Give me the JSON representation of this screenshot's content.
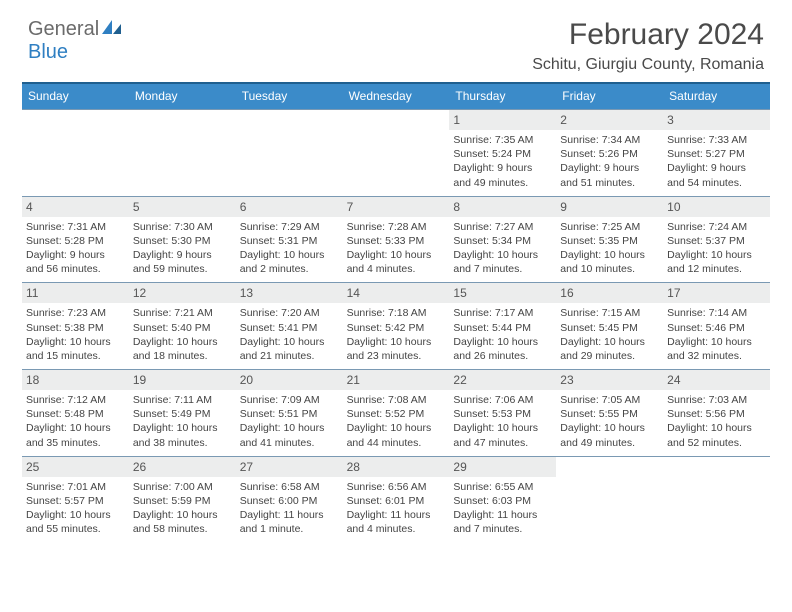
{
  "header": {
    "logo_part1": "General",
    "logo_part2": "Blue",
    "month_title": "February 2024",
    "location": "Schitu, Giurgiu County, Romania"
  },
  "colors": {
    "header_bar": "#3b8bc9",
    "header_bar_border": "#1f5f8f",
    "row_border": "#7a99b3",
    "daynum_bg": "#eceded",
    "logo_gray": "#6b6b6b",
    "logo_blue": "#2f7fc2",
    "text": "#444444",
    "background": "#ffffff"
  },
  "typography": {
    "month_title_size": 30,
    "location_size": 16,
    "dow_size": 12,
    "daynum_size": 12,
    "info_size": 10.5
  },
  "dow": [
    "Sunday",
    "Monday",
    "Tuesday",
    "Wednesday",
    "Thursday",
    "Friday",
    "Saturday"
  ],
  "weeks": [
    [
      {
        "blank": true
      },
      {
        "blank": true
      },
      {
        "blank": true
      },
      {
        "blank": true
      },
      {
        "num": "1",
        "sunrise": "Sunrise: 7:35 AM",
        "sunset": "Sunset: 5:24 PM",
        "day1": "Daylight: 9 hours",
        "day2": "and 49 minutes."
      },
      {
        "num": "2",
        "sunrise": "Sunrise: 7:34 AM",
        "sunset": "Sunset: 5:26 PM",
        "day1": "Daylight: 9 hours",
        "day2": "and 51 minutes."
      },
      {
        "num": "3",
        "sunrise": "Sunrise: 7:33 AM",
        "sunset": "Sunset: 5:27 PM",
        "day1": "Daylight: 9 hours",
        "day2": "and 54 minutes."
      }
    ],
    [
      {
        "num": "4",
        "sunrise": "Sunrise: 7:31 AM",
        "sunset": "Sunset: 5:28 PM",
        "day1": "Daylight: 9 hours",
        "day2": "and 56 minutes."
      },
      {
        "num": "5",
        "sunrise": "Sunrise: 7:30 AM",
        "sunset": "Sunset: 5:30 PM",
        "day1": "Daylight: 9 hours",
        "day2": "and 59 minutes."
      },
      {
        "num": "6",
        "sunrise": "Sunrise: 7:29 AM",
        "sunset": "Sunset: 5:31 PM",
        "day1": "Daylight: 10 hours",
        "day2": "and 2 minutes."
      },
      {
        "num": "7",
        "sunrise": "Sunrise: 7:28 AM",
        "sunset": "Sunset: 5:33 PM",
        "day1": "Daylight: 10 hours",
        "day2": "and 4 minutes."
      },
      {
        "num": "8",
        "sunrise": "Sunrise: 7:27 AM",
        "sunset": "Sunset: 5:34 PM",
        "day1": "Daylight: 10 hours",
        "day2": "and 7 minutes."
      },
      {
        "num": "9",
        "sunrise": "Sunrise: 7:25 AM",
        "sunset": "Sunset: 5:35 PM",
        "day1": "Daylight: 10 hours",
        "day2": "and 10 minutes."
      },
      {
        "num": "10",
        "sunrise": "Sunrise: 7:24 AM",
        "sunset": "Sunset: 5:37 PM",
        "day1": "Daylight: 10 hours",
        "day2": "and 12 minutes."
      }
    ],
    [
      {
        "num": "11",
        "sunrise": "Sunrise: 7:23 AM",
        "sunset": "Sunset: 5:38 PM",
        "day1": "Daylight: 10 hours",
        "day2": "and 15 minutes."
      },
      {
        "num": "12",
        "sunrise": "Sunrise: 7:21 AM",
        "sunset": "Sunset: 5:40 PM",
        "day1": "Daylight: 10 hours",
        "day2": "and 18 minutes."
      },
      {
        "num": "13",
        "sunrise": "Sunrise: 7:20 AM",
        "sunset": "Sunset: 5:41 PM",
        "day1": "Daylight: 10 hours",
        "day2": "and 21 minutes."
      },
      {
        "num": "14",
        "sunrise": "Sunrise: 7:18 AM",
        "sunset": "Sunset: 5:42 PM",
        "day1": "Daylight: 10 hours",
        "day2": "and 23 minutes."
      },
      {
        "num": "15",
        "sunrise": "Sunrise: 7:17 AM",
        "sunset": "Sunset: 5:44 PM",
        "day1": "Daylight: 10 hours",
        "day2": "and 26 minutes."
      },
      {
        "num": "16",
        "sunrise": "Sunrise: 7:15 AM",
        "sunset": "Sunset: 5:45 PM",
        "day1": "Daylight: 10 hours",
        "day2": "and 29 minutes."
      },
      {
        "num": "17",
        "sunrise": "Sunrise: 7:14 AM",
        "sunset": "Sunset: 5:46 PM",
        "day1": "Daylight: 10 hours",
        "day2": "and 32 minutes."
      }
    ],
    [
      {
        "num": "18",
        "sunrise": "Sunrise: 7:12 AM",
        "sunset": "Sunset: 5:48 PM",
        "day1": "Daylight: 10 hours",
        "day2": "and 35 minutes."
      },
      {
        "num": "19",
        "sunrise": "Sunrise: 7:11 AM",
        "sunset": "Sunset: 5:49 PM",
        "day1": "Daylight: 10 hours",
        "day2": "and 38 minutes."
      },
      {
        "num": "20",
        "sunrise": "Sunrise: 7:09 AM",
        "sunset": "Sunset: 5:51 PM",
        "day1": "Daylight: 10 hours",
        "day2": "and 41 minutes."
      },
      {
        "num": "21",
        "sunrise": "Sunrise: 7:08 AM",
        "sunset": "Sunset: 5:52 PM",
        "day1": "Daylight: 10 hours",
        "day2": "and 44 minutes."
      },
      {
        "num": "22",
        "sunrise": "Sunrise: 7:06 AM",
        "sunset": "Sunset: 5:53 PM",
        "day1": "Daylight: 10 hours",
        "day2": "and 47 minutes."
      },
      {
        "num": "23",
        "sunrise": "Sunrise: 7:05 AM",
        "sunset": "Sunset: 5:55 PM",
        "day1": "Daylight: 10 hours",
        "day2": "and 49 minutes."
      },
      {
        "num": "24",
        "sunrise": "Sunrise: 7:03 AM",
        "sunset": "Sunset: 5:56 PM",
        "day1": "Daylight: 10 hours",
        "day2": "and 52 minutes."
      }
    ],
    [
      {
        "num": "25",
        "sunrise": "Sunrise: 7:01 AM",
        "sunset": "Sunset: 5:57 PM",
        "day1": "Daylight: 10 hours",
        "day2": "and 55 minutes."
      },
      {
        "num": "26",
        "sunrise": "Sunrise: 7:00 AM",
        "sunset": "Sunset: 5:59 PM",
        "day1": "Daylight: 10 hours",
        "day2": "and 58 minutes."
      },
      {
        "num": "27",
        "sunrise": "Sunrise: 6:58 AM",
        "sunset": "Sunset: 6:00 PM",
        "day1": "Daylight: 11 hours",
        "day2": "and 1 minute."
      },
      {
        "num": "28",
        "sunrise": "Sunrise: 6:56 AM",
        "sunset": "Sunset: 6:01 PM",
        "day1": "Daylight: 11 hours",
        "day2": "and 4 minutes."
      },
      {
        "num": "29",
        "sunrise": "Sunrise: 6:55 AM",
        "sunset": "Sunset: 6:03 PM",
        "day1": "Daylight: 11 hours",
        "day2": "and 7 minutes."
      },
      {
        "blank": true
      },
      {
        "blank": true
      }
    ]
  ]
}
